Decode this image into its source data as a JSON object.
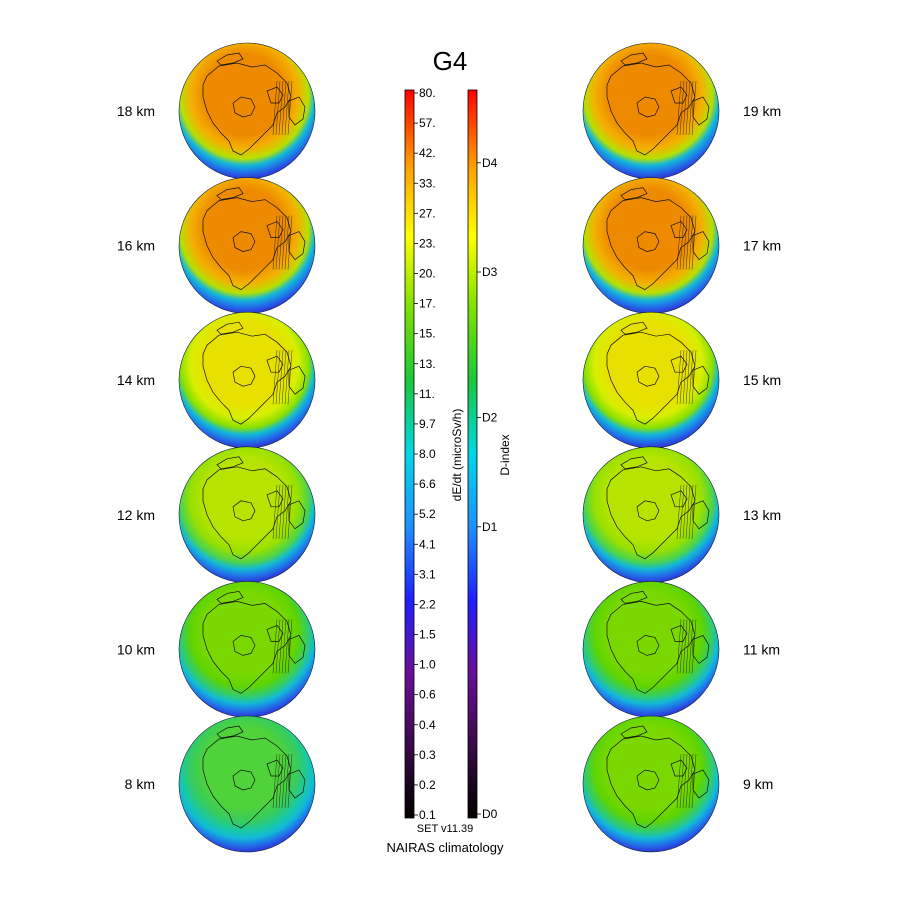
{
  "title": "G4",
  "footer": {
    "version": "SET v11.39",
    "source": "NAIRAS climatology"
  },
  "colorbar_dose": {
    "label": "dE/dt (microSv/h)",
    "ticks": [
      "80.",
      "57.",
      "42.",
      "33.",
      "27.",
      "23.",
      "20.",
      "17.",
      "15.",
      "13.",
      "11.",
      "9.7",
      "8.0",
      "6.6",
      "5.2",
      "4.1",
      "3.1",
      "2.2",
      "1.5",
      "1.0",
      "0.6",
      "0.4",
      "0.3",
      "0.2",
      "0.1"
    ]
  },
  "colorbar_index": {
    "label": "D-index",
    "ticks": [
      {
        "label": "D0",
        "pos": 0.0
      },
      {
        "label": "D1",
        "pos": 0.4
      },
      {
        "label": "D2",
        "pos": 0.55
      },
      {
        "label": "D3",
        "pos": 0.75
      },
      {
        "label": "D4",
        "pos": 0.9
      }
    ]
  },
  "colormap": [
    "#000000",
    "#3a0a48",
    "#6a0f9a",
    "#2020ff",
    "#1e90ff",
    "#00d7e8",
    "#18c83c",
    "#7ee000",
    "#ffff00",
    "#ff9900",
    "#ff0000"
  ],
  "chart_data": {
    "type": "heatmap",
    "title": "G4",
    "description_scale": "dE/dt (microSv/h)",
    "panels": [
      {
        "altitude": "18 km",
        "column": "left",
        "center_level": "orange"
      },
      {
        "altitude": "16 km",
        "column": "left",
        "center_level": "orange"
      },
      {
        "altitude": "14 km",
        "column": "left",
        "center_level": "yellow"
      },
      {
        "altitude": "12 km",
        "column": "left",
        "center_level": "yellow-green"
      },
      {
        "altitude": "10 km",
        "column": "left",
        "center_level": "green"
      },
      {
        "altitude": "8 km",
        "column": "left",
        "center_level": "green-cyan"
      },
      {
        "altitude": "19 km",
        "column": "right",
        "center_level": "orange"
      },
      {
        "altitude": "17 km",
        "column": "right",
        "center_level": "orange"
      },
      {
        "altitude": "15 km",
        "column": "right",
        "center_level": "yellow"
      },
      {
        "altitude": "13 km",
        "column": "right",
        "center_level": "yellow-green"
      },
      {
        "altitude": "11 km",
        "column": "right",
        "center_level": "green"
      },
      {
        "altitude": "9 km",
        "column": "right",
        "center_level": "green"
      }
    ],
    "level_colors": {
      "orange": [
        "#ee8a00",
        "#f4b000",
        "#b8e000"
      ],
      "yellow": [
        "#e8e000",
        "#d8ee00",
        "#8ae000"
      ],
      "yellow-green": [
        "#b6e400",
        "#98e000",
        "#4ed44a"
      ],
      "green": [
        "#7ad800",
        "#5fd400",
        "#30cc70"
      ],
      "green-cyan": [
        "#50d23a",
        "#36cc60",
        "#18c8a8"
      ]
    }
  }
}
